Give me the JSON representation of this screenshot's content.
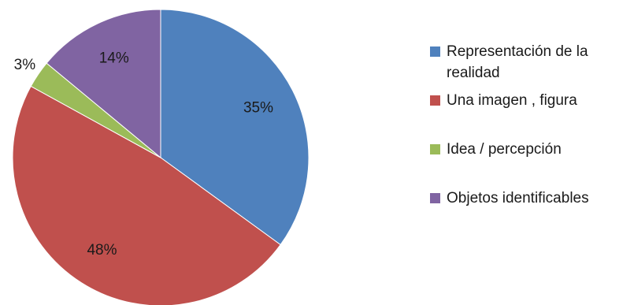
{
  "chart_data": {
    "type": "pie",
    "categories": [
      "Representación de la realidad",
      "Una imagen , figura",
      "Idea / percepción",
      "Objetos identificables"
    ],
    "values": [
      35,
      48,
      3,
      14
    ],
    "value_labels": [
      "35%",
      "48%",
      "3%",
      "14%"
    ],
    "colors": [
      "#4f81bd",
      "#c0504d",
      "#9bbb59",
      "#8064a2"
    ],
    "start_angle_deg": 0,
    "direction": "clockwise",
    "legend_position": "right"
  }
}
